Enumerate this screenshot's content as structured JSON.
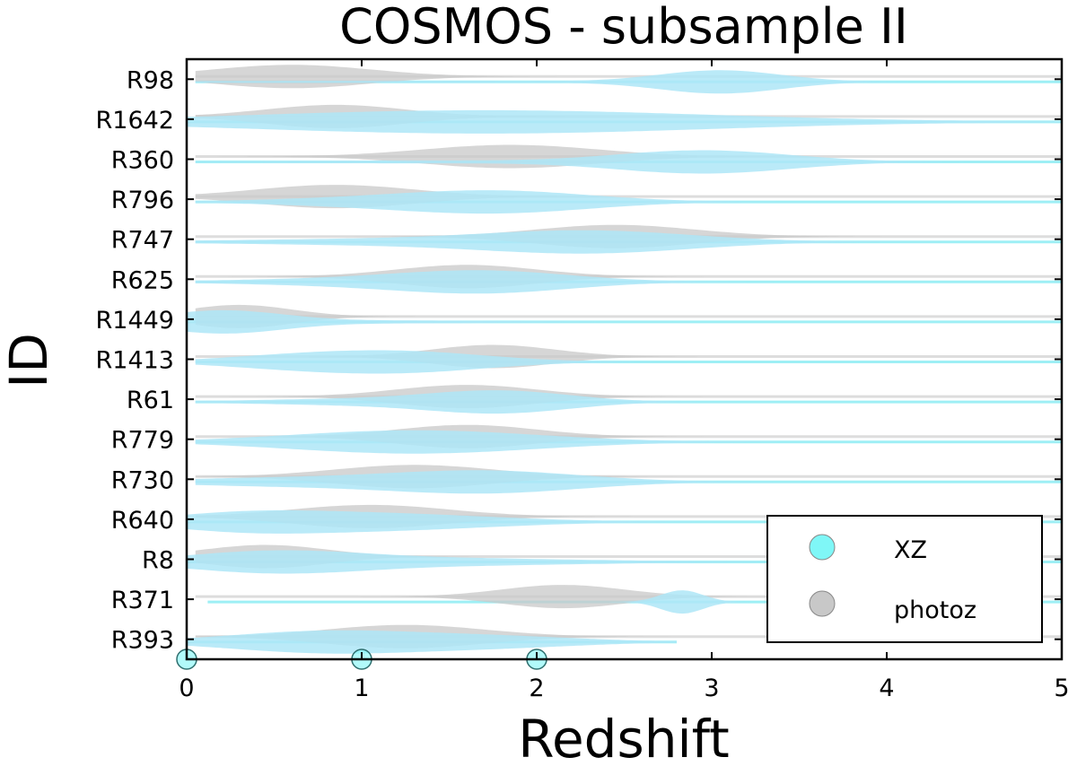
{
  "chart_data": {
    "type": "violin",
    "title": "COSMOS - subsample II",
    "xlabel": "Redshift",
    "ylabel": "ID",
    "xlim": [
      0,
      5
    ],
    "xticks": [
      "0",
      "1",
      "2",
      "3",
      "4",
      "5"
    ],
    "categories": [
      "R98",
      "R1642",
      "R360",
      "R796",
      "R747",
      "R625",
      "R1449",
      "R1413",
      "R61",
      "R779",
      "R730",
      "R640",
      "R8",
      "R371",
      "R393"
    ],
    "legend": {
      "position": "lower-right",
      "entries": [
        {
          "label": "XZ",
          "color": "#7ff7f7"
        },
        {
          "label": "photoz",
          "color": "#c8c8c8"
        }
      ]
    },
    "series": [
      {
        "name": "XZ",
        "color": "#aee6f7",
        "line_color": "#9eeff5",
        "violins": [
          {
            "id": "R98",
            "range": [
              0.05,
              5.0
            ],
            "peaks": [
              [
                3.05,
                0.35,
                1.0
              ],
              [
                1.0,
                1.2,
                0.08
              ]
            ]
          },
          {
            "id": "R1642",
            "range": [
              0.0,
              5.0
            ],
            "peaks": [
              [
                1.7,
                1.3,
                1.0
              ]
            ]
          },
          {
            "id": "R360",
            "range": [
              0.05,
              5.0
            ],
            "peaks": [
              [
                2.95,
                0.5,
                1.0
              ],
              [
                1.2,
                0.7,
                0.12
              ]
            ]
          },
          {
            "id": "R796",
            "range": [
              0.05,
              5.0
            ],
            "peaks": [
              [
                1.75,
                0.55,
                1.0
              ],
              [
                0.8,
                0.5,
                0.2
              ]
            ]
          },
          {
            "id": "R747",
            "range": [
              0.05,
              5.0
            ],
            "peaks": [
              [
                2.3,
                0.6,
                1.0
              ],
              [
                1.0,
                0.8,
                0.25
              ]
            ]
          },
          {
            "id": "R625",
            "range": [
              0.05,
              5.0
            ],
            "peaks": [
              [
                1.7,
                0.5,
                1.0
              ],
              [
                0.8,
                0.6,
                0.25
              ]
            ]
          },
          {
            "id": "R1449",
            "range": [
              0.0,
              5.0
            ],
            "peaks": [
              [
                0.2,
                0.35,
                1.0
              ],
              [
                1.2,
                0.6,
                0.12
              ]
            ]
          },
          {
            "id": "R1413",
            "range": [
              0.05,
              5.0
            ],
            "peaks": [
              [
                1.2,
                0.5,
                1.0
              ],
              [
                0.5,
                0.4,
                0.35
              ]
            ]
          },
          {
            "id": "R61",
            "range": [
              0.05,
              5.0
            ],
            "peaks": [
              [
                1.8,
                0.4,
                1.0
              ],
              [
                1.0,
                0.6,
                0.3
              ]
            ]
          },
          {
            "id": "R779",
            "range": [
              0.05,
              5.0
            ],
            "peaks": [
              [
                1.3,
                0.7,
                1.0
              ]
            ]
          },
          {
            "id": "R730",
            "range": [
              0.05,
              5.0
            ],
            "peaks": [
              [
                1.7,
                0.55,
                1.0
              ],
              [
                0.5,
                0.6,
                0.35
              ]
            ]
          },
          {
            "id": "R640",
            "range": [
              0.0,
              5.0
            ],
            "peaks": [
              [
                1.0,
                0.7,
                1.0
              ],
              [
                0.3,
                0.4,
                0.6
              ]
            ]
          },
          {
            "id": "R8",
            "range": [
              0.0,
              5.0
            ],
            "peaks": [
              [
                0.5,
                0.5,
                1.0
              ],
              [
                1.5,
                0.8,
                0.35
              ]
            ]
          },
          {
            "id": "R371",
            "range": [
              0.12,
              5.0
            ],
            "peaks": [
              [
                2.83,
                0.12,
                1.0
              ]
            ]
          },
          {
            "id": "R393",
            "range": [
              0.0,
              2.8
            ],
            "peaks": [
              [
                0.8,
                0.55,
                1.0
              ],
              [
                1.8,
                0.5,
                0.45
              ]
            ]
          }
        ]
      },
      {
        "name": "photoz",
        "color": "#c8c8c8",
        "line_color": "#dddddd",
        "violins": [
          {
            "id": "R98",
            "range": [
              0.05,
              5.0
            ],
            "peaks": [
              [
                0.6,
                0.45,
                1.0
              ]
            ]
          },
          {
            "id": "R1642",
            "range": [
              0.05,
              5.0
            ],
            "peaks": [
              [
                0.85,
                0.4,
                1.0
              ]
            ]
          },
          {
            "id": "R360",
            "range": [
              0.05,
              5.0
            ],
            "peaks": [
              [
                1.85,
                0.5,
                1.0
              ]
            ]
          },
          {
            "id": "R796",
            "range": [
              0.05,
              5.0
            ],
            "peaks": [
              [
                0.85,
                0.45,
                1.0
              ]
            ]
          },
          {
            "id": "R747",
            "range": [
              0.05,
              5.0
            ],
            "peaks": [
              [
                2.45,
                0.45,
                1.0
              ]
            ]
          },
          {
            "id": "R625",
            "range": [
              0.05,
              5.0
            ],
            "peaks": [
              [
                1.6,
                0.4,
                1.0
              ]
            ]
          },
          {
            "id": "R1449",
            "range": [
              0.05,
              5.0
            ],
            "peaks": [
              [
                0.3,
                0.3,
                1.0
              ]
            ]
          },
          {
            "id": "R1413",
            "range": [
              0.05,
              5.0
            ],
            "peaks": [
              [
                1.75,
                0.35,
                1.0
              ]
            ]
          },
          {
            "id": "R61",
            "range": [
              0.05,
              5.0
            ],
            "peaks": [
              [
                1.6,
                0.4,
                1.0
              ]
            ]
          },
          {
            "id": "R779",
            "range": [
              0.05,
              5.0
            ],
            "peaks": [
              [
                1.6,
                0.4,
                1.0
              ]
            ]
          },
          {
            "id": "R730",
            "range": [
              0.05,
              5.0
            ],
            "peaks": [
              [
                1.3,
                0.45,
                1.0
              ]
            ]
          },
          {
            "id": "R640",
            "range": [
              0.05,
              5.0
            ],
            "peaks": [
              [
                1.05,
                0.45,
                1.0
              ]
            ]
          },
          {
            "id": "R8",
            "range": [
              0.05,
              5.0
            ],
            "peaks": [
              [
                0.45,
                0.35,
                1.0
              ]
            ]
          },
          {
            "id": "R371",
            "range": [
              0.05,
              5.0
            ],
            "peaks": [
              [
                2.15,
                0.35,
                1.0
              ]
            ]
          },
          {
            "id": "R393",
            "range": [
              0.05,
              5.0
            ],
            "peaks": [
              [
                1.25,
                0.45,
                1.0
              ]
            ]
          }
        ]
      }
    ],
    "x_axis_markers": [
      0,
      1,
      2
    ],
    "grid": false
  }
}
